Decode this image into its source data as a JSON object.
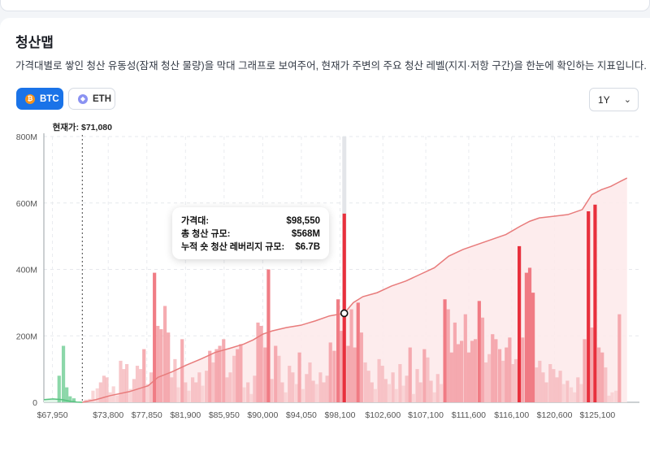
{
  "page": {
    "title": "청산맵",
    "description": "가격대별로 쌓인 청산 유동성(잠재 청산 물량)을 막대 그래프로 보여주어, 현재가 주변의 주요 청산 레벨(지지·저항 구간)을 한눈에 확인하는 지표입니다."
  },
  "asset_tabs": [
    {
      "label": "BTC",
      "icon": "bitcoin-icon",
      "active": true
    },
    {
      "label": "ETH",
      "icon": "ethereum-icon",
      "active": false
    }
  ],
  "period_select": {
    "value": "1Y",
    "icon": "chevron-down-icon"
  },
  "tooltip": {
    "rows": [
      {
        "label": "가격대:",
        "value": "$98,550"
      },
      {
        "label": "총 청산 규모:",
        "value": "$568M"
      },
      {
        "label": "누적 숏 청산 레버리지 규모:",
        "value": "$6.7B"
      }
    ]
  },
  "colors": {
    "short": "#e8303d",
    "short_light": "#f5b8bb",
    "long": "#7fd3a0",
    "cumulative_line": "#e87b7b",
    "accent": "#1a73e8"
  },
  "chart_data": {
    "type": "bar",
    "current_price_label": "현재가: $71,080",
    "current_price": 71080,
    "x_range": [
      67050,
      129500
    ],
    "x_ticks": [
      "$67,950",
      "$73,800",
      "$77,850",
      "$81,900",
      "$85,950",
      "$90,000",
      "$94,050",
      "$98,100",
      "$102,600",
      "$107,100",
      "$111,600",
      "$116,100",
      "$120,600",
      "$125,100"
    ],
    "x_tick_values": [
      67950,
      73800,
      77850,
      81900,
      85950,
      90000,
      94050,
      98100,
      102600,
      107100,
      111600,
      116100,
      120600,
      125100
    ],
    "y_ticks": [
      "0",
      "200M",
      "400M",
      "600M",
      "800M"
    ],
    "ylim": [
      0,
      800
    ],
    "y_unit": "M",
    "highlighted_price": 98550,
    "long_bars": [
      {
        "x": 68650,
        "v": 80
      },
      {
        "x": 69100,
        "v": 170
      },
      {
        "x": 69450,
        "v": 45
      },
      {
        "x": 69800,
        "v": 18
      },
      {
        "x": 70200,
        "v": 12
      }
    ],
    "short_bars": [
      {
        "x": 71450,
        "v": 8
      },
      {
        "x": 71850,
        "v": 10
      },
      {
        "x": 72200,
        "v": 35
      },
      {
        "x": 72650,
        "v": 42
      },
      {
        "x": 73000,
        "v": 60
      },
      {
        "x": 73350,
        "v": 80
      },
      {
        "x": 73650,
        "v": 75
      },
      {
        "x": 74000,
        "v": 30
      },
      {
        "x": 74350,
        "v": 48
      },
      {
        "x": 74750,
        "v": 20
      },
      {
        "x": 75100,
        "v": 125
      },
      {
        "x": 75450,
        "v": 100
      },
      {
        "x": 75750,
        "v": 115
      },
      {
        "x": 76150,
        "v": 40
      },
      {
        "x": 76500,
        "v": 70
      },
      {
        "x": 76850,
        "v": 110
      },
      {
        "x": 77200,
        "v": 100
      },
      {
        "x": 77550,
        "v": 160
      },
      {
        "x": 77950,
        "v": 55
      },
      {
        "x": 78300,
        "v": 90
      },
      {
        "x": 78650,
        "v": 390
      },
      {
        "x": 79000,
        "v": 230
      },
      {
        "x": 79350,
        "v": 220
      },
      {
        "x": 79750,
        "v": 290
      },
      {
        "x": 80100,
        "v": 210
      },
      {
        "x": 80450,
        "v": 75
      },
      {
        "x": 80800,
        "v": 130
      },
      {
        "x": 81150,
        "v": 45
      },
      {
        "x": 81550,
        "v": 190
      },
      {
        "x": 81900,
        "v": 60
      },
      {
        "x": 82250,
        "v": 35
      },
      {
        "x": 82650,
        "v": 75
      },
      {
        "x": 83000,
        "v": 60
      },
      {
        "x": 83350,
        "v": 90
      },
      {
        "x": 83700,
        "v": 50
      },
      {
        "x": 84100,
        "v": 95
      },
      {
        "x": 84450,
        "v": 155
      },
      {
        "x": 84800,
        "v": 120
      },
      {
        "x": 85150,
        "v": 160
      },
      {
        "x": 85500,
        "v": 170
      },
      {
        "x": 85900,
        "v": 190
      },
      {
        "x": 86250,
        "v": 75
      },
      {
        "x": 86600,
        "v": 90
      },
      {
        "x": 87000,
        "v": 140
      },
      {
        "x": 87350,
        "v": 160
      },
      {
        "x": 87700,
        "v": 175
      },
      {
        "x": 88050,
        "v": 45
      },
      {
        "x": 88450,
        "v": 60
      },
      {
        "x": 88800,
        "v": 25
      },
      {
        "x": 89150,
        "v": 80
      },
      {
        "x": 89500,
        "v": 240
      },
      {
        "x": 89850,
        "v": 230
      },
      {
        "x": 90250,
        "v": 165
      },
      {
        "x": 90600,
        "v": 400
      },
      {
        "x": 90950,
        "v": 70
      },
      {
        "x": 91350,
        "v": 170
      },
      {
        "x": 91700,
        "v": 140
      },
      {
        "x": 92050,
        "v": 60
      },
      {
        "x": 92400,
        "v": 30
      },
      {
        "x": 92800,
        "v": 110
      },
      {
        "x": 93150,
        "v": 90
      },
      {
        "x": 93550,
        "v": 55
      },
      {
        "x": 93850,
        "v": 150
      },
      {
        "x": 94200,
        "v": 40
      },
      {
        "x": 94600,
        "v": 85
      },
      {
        "x": 94950,
        "v": 120
      },
      {
        "x": 95300,
        "v": 65
      },
      {
        "x": 95650,
        "v": 55
      },
      {
        "x": 96050,
        "v": 90
      },
      {
        "x": 96400,
        "v": 60
      },
      {
        "x": 96750,
        "v": 80
      },
      {
        "x": 97100,
        "v": 180
      },
      {
        "x": 97500,
        "v": 155
      },
      {
        "x": 97900,
        "v": 310
      },
      {
        "x": 98250,
        "v": 215
      },
      {
        "x": 98550,
        "v": 568
      },
      {
        "x": 98950,
        "v": 170
      },
      {
        "x": 99300,
        "v": 280
      },
      {
        "x": 99650,
        "v": 165
      },
      {
        "x": 100000,
        "v": 300
      },
      {
        "x": 100350,
        "v": 210
      },
      {
        "x": 100750,
        "v": 120
      },
      {
        "x": 101100,
        "v": 95
      },
      {
        "x": 101450,
        "v": 60
      },
      {
        "x": 101800,
        "v": 40
      },
      {
        "x": 102200,
        "v": 130
      },
      {
        "x": 102550,
        "v": 110
      },
      {
        "x": 102900,
        "v": 70
      },
      {
        "x": 103250,
        "v": 55
      },
      {
        "x": 103650,
        "v": 90
      },
      {
        "x": 104000,
        "v": 40
      },
      {
        "x": 104400,
        "v": 115
      },
      {
        "x": 104750,
        "v": 50
      },
      {
        "x": 105100,
        "v": 80
      },
      {
        "x": 105450,
        "v": 165
      },
      {
        "x": 105800,
        "v": 25
      },
      {
        "x": 106200,
        "v": 100
      },
      {
        "x": 106550,
        "v": 60
      },
      {
        "x": 106950,
        "v": 160
      },
      {
        "x": 107300,
        "v": 135
      },
      {
        "x": 107650,
        "v": 65
      },
      {
        "x": 108000,
        "v": 30
      },
      {
        "x": 108350,
        "v": 85
      },
      {
        "x": 108700,
        "v": 55
      },
      {
        "x": 109100,
        "v": 310
      },
      {
        "x": 109450,
        "v": 280
      },
      {
        "x": 109800,
        "v": 150
      },
      {
        "x": 110150,
        "v": 240
      },
      {
        "x": 110500,
        "v": 175
      },
      {
        "x": 110850,
        "v": 185
      },
      {
        "x": 111250,
        "v": 265
      },
      {
        "x": 111600,
        "v": 150
      },
      {
        "x": 111950,
        "v": 185
      },
      {
        "x": 112300,
        "v": 190
      },
      {
        "x": 112700,
        "v": 305
      },
      {
        "x": 113050,
        "v": 255
      },
      {
        "x": 113400,
        "v": 120
      },
      {
        "x": 113750,
        "v": 145
      },
      {
        "x": 114100,
        "v": 205
      },
      {
        "x": 114450,
        "v": 190
      },
      {
        "x": 114850,
        "v": 160
      },
      {
        "x": 115200,
        "v": 125
      },
      {
        "x": 115550,
        "v": 165
      },
      {
        "x": 115900,
        "v": 195
      },
      {
        "x": 116200,
        "v": 115
      },
      {
        "x": 116550,
        "v": 130
      },
      {
        "x": 116900,
        "v": 470
      },
      {
        "x": 117250,
        "v": 195
      },
      {
        "x": 117650,
        "v": 390
      },
      {
        "x": 118000,
        "v": 405
      },
      {
        "x": 118350,
        "v": 330
      },
      {
        "x": 118700,
        "v": 105
      },
      {
        "x": 119050,
        "v": 125
      },
      {
        "x": 119400,
        "v": 90
      },
      {
        "x": 119750,
        "v": 60
      },
      {
        "x": 120150,
        "v": 115
      },
      {
        "x": 120500,
        "v": 100
      },
      {
        "x": 120850,
        "v": 75
      },
      {
        "x": 121200,
        "v": 95
      },
      {
        "x": 121550,
        "v": 55
      },
      {
        "x": 121950,
        "v": 65
      },
      {
        "x": 122350,
        "v": 45
      },
      {
        "x": 122700,
        "v": 30
      },
      {
        "x": 123050,
        "v": 75
      },
      {
        "x": 123400,
        "v": 55
      },
      {
        "x": 123750,
        "v": 190
      },
      {
        "x": 124150,
        "v": 575
      },
      {
        "x": 124500,
        "v": 225
      },
      {
        "x": 124850,
        "v": 595
      },
      {
        "x": 125250,
        "v": 165
      },
      {
        "x": 125600,
        "v": 150
      },
      {
        "x": 125950,
        "v": 105
      },
      {
        "x": 126300,
        "v": 20
      },
      {
        "x": 126650,
        "v": 30
      },
      {
        "x": 127050,
        "v": 35
      },
      {
        "x": 127400,
        "v": 265
      }
    ],
    "short_cumulative_line": [
      {
        "x": 71080,
        "v": 0
      },
      {
        "x": 72500,
        "v": 8
      },
      {
        "x": 74000,
        "v": 20
      },
      {
        "x": 76000,
        "v": 32
      },
      {
        "x": 78000,
        "v": 50
      },
      {
        "x": 79000,
        "v": 75
      },
      {
        "x": 80500,
        "v": 92
      },
      {
        "x": 82000,
        "v": 112
      },
      {
        "x": 83500,
        "v": 130
      },
      {
        "x": 85000,
        "v": 150
      },
      {
        "x": 86500,
        "v": 162
      },
      {
        "x": 88000,
        "v": 175
      },
      {
        "x": 89000,
        "v": 188
      },
      {
        "x": 90000,
        "v": 205
      },
      {
        "x": 91000,
        "v": 215
      },
      {
        "x": 92500,
        "v": 225
      },
      {
        "x": 94000,
        "v": 232
      },
      {
        "x": 95500,
        "v": 245
      },
      {
        "x": 97000,
        "v": 260
      },
      {
        "x": 98550,
        "v": 268
      },
      {
        "x": 99500,
        "v": 300
      },
      {
        "x": 100500,
        "v": 318
      },
      {
        "x": 102000,
        "v": 330
      },
      {
        "x": 103500,
        "v": 350
      },
      {
        "x": 105000,
        "v": 365
      },
      {
        "x": 106500,
        "v": 385
      },
      {
        "x": 108000,
        "v": 405
      },
      {
        "x": 109500,
        "v": 440
      },
      {
        "x": 111000,
        "v": 460
      },
      {
        "x": 112500,
        "v": 475
      },
      {
        "x": 114000,
        "v": 490
      },
      {
        "x": 115500,
        "v": 505
      },
      {
        "x": 117000,
        "v": 530
      },
      {
        "x": 118000,
        "v": 545
      },
      {
        "x": 119000,
        "v": 555
      },
      {
        "x": 120500,
        "v": 560
      },
      {
        "x": 122000,
        "v": 565
      },
      {
        "x": 123500,
        "v": 580
      },
      {
        "x": 124500,
        "v": 625
      },
      {
        "x": 125500,
        "v": 640
      },
      {
        "x": 126500,
        "v": 650
      },
      {
        "x": 127500,
        "v": 665
      },
      {
        "x": 128200,
        "v": 675
      }
    ],
    "long_cumulative_line": [
      {
        "x": 67050,
        "v": 8
      },
      {
        "x": 68000,
        "v": 10
      },
      {
        "x": 69000,
        "v": 8
      },
      {
        "x": 69800,
        "v": 3
      },
      {
        "x": 70500,
        "v": 0.5
      },
      {
        "x": 71080,
        "v": 0
      }
    ]
  }
}
